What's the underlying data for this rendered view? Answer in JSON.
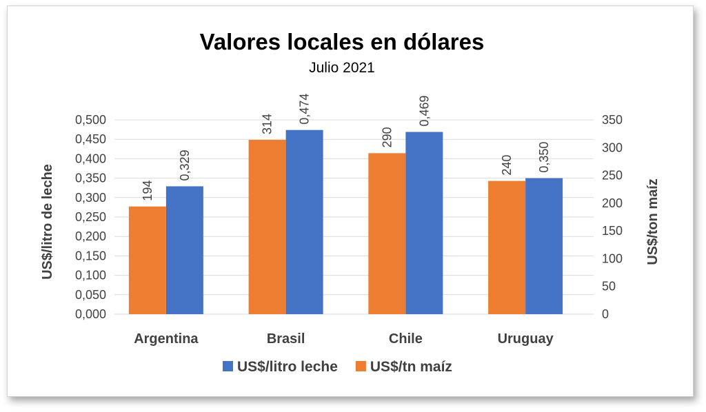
{
  "chart_data": {
    "type": "bar",
    "title": "Valores locales en dólares",
    "subtitle": "Julio 2021",
    "categories": [
      "Argentina",
      "Brasil",
      "Chile",
      "Uruguay"
    ],
    "y_left": {
      "label": "US$/litro de leche",
      "range": [
        0,
        0.5
      ],
      "ticks": [
        "0,000",
        "0,050",
        "0,100",
        "0,150",
        "0,200",
        "0,250",
        "0,300",
        "0,350",
        "0,400",
        "0,450",
        "0,500"
      ]
    },
    "y_right": {
      "label": "US$/ton maíz",
      "range": [
        0,
        350
      ],
      "ticks": [
        "0",
        "50",
        "100",
        "150",
        "200",
        "250",
        "300",
        "350"
      ]
    },
    "series": [
      {
        "name": "US$/tn maíz",
        "axis": "right",
        "color": "#ED7D31",
        "values": [
          194,
          314,
          290,
          240
        ],
        "labels": [
          "194",
          "314",
          "290",
          "240"
        ]
      },
      {
        "name": "US$/litro leche",
        "axis": "left",
        "color": "#4472C4",
        "values": [
          0.329,
          0.474,
          0.469,
          0.35
        ],
        "labels": [
          "0,329",
          "0,474",
          "0,469",
          "0,350"
        ]
      }
    ],
    "legend": {
      "position": "bottom",
      "items": [
        {
          "name": "US$/litro leche",
          "color": "#4472C4"
        },
        {
          "name": "US$/tn maíz",
          "color": "#ED7D31"
        }
      ]
    },
    "grid": true
  }
}
